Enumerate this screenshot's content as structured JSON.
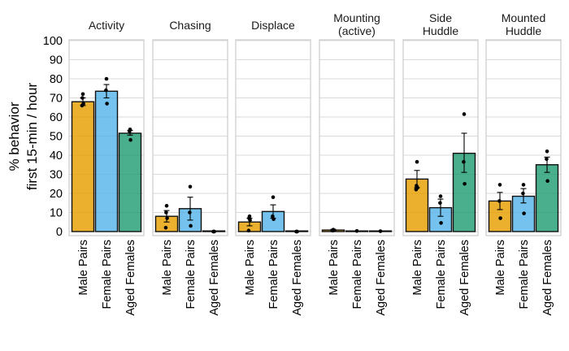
{
  "chart_data": {
    "type": "bar",
    "ylabel": [
      "% behavior",
      "first 15-min / hour"
    ],
    "ylim": [
      0,
      100
    ],
    "yticks": [
      0,
      10,
      20,
      30,
      40,
      50,
      60,
      70,
      80,
      90,
      100
    ],
    "categories": [
      "Male Pairs",
      "Female Pairs",
      "Aged Females"
    ],
    "colors": {
      "Male Pairs": "#E69F00",
      "Female Pairs": "#56B4E9",
      "Aged Females": "#229E73"
    },
    "grid": true,
    "panels": [
      {
        "title": [
          "Activity"
        ],
        "bars": [
          {
            "category": "Male Pairs",
            "mean": 68,
            "err": [
              66,
              70
            ],
            "points": [
              72,
              70,
              67,
              66
            ]
          },
          {
            "category": "Female Pairs",
            "mean": 73.5,
            "err": [
              70,
              77
            ],
            "points": [
              80,
              74,
              67
            ]
          },
          {
            "category": "Aged Females",
            "mean": 51.5,
            "err": [
              50.5,
              53
            ],
            "points": [
              53.5,
              52.5,
              48
            ]
          }
        ]
      },
      {
        "title": [
          "Chasing"
        ],
        "bars": [
          {
            "category": "Male Pairs",
            "mean": 8,
            "err": [
              5,
              11
            ],
            "points": [
              13.5,
              10,
              7,
              2
            ]
          },
          {
            "category": "Female Pairs",
            "mean": 12,
            "err": [
              6,
              18
            ],
            "points": [
              23.5,
              10,
              3
            ]
          },
          {
            "category": "Aged Females",
            "mean": 0,
            "err": [
              0,
              0
            ],
            "points": [
              0,
              0,
              0
            ]
          }
        ]
      },
      {
        "title": [
          "Displace"
        ],
        "bars": [
          {
            "category": "Male Pairs",
            "mean": 5,
            "err": [
              3,
              7
            ],
            "points": [
              8,
              7,
              6,
              0.5
            ]
          },
          {
            "category": "Female Pairs",
            "mean": 10.5,
            "err": [
              7,
              14
            ],
            "points": [
              18,
              8,
              6.5
            ]
          },
          {
            "category": "Aged Females",
            "mean": 0,
            "err": [
              0,
              0
            ],
            "points": [
              0,
              0,
              0
            ]
          }
        ]
      },
      {
        "title": [
          "Mounting",
          "(active)"
        ],
        "bars": [
          {
            "category": "Male Pairs",
            "mean": 0.8,
            "err": [
              0.4,
              1.2
            ],
            "points": [
              1,
              0.5
            ]
          },
          {
            "category": "Female Pairs",
            "mean": 0.3,
            "err": [
              0.3,
              0.3
            ],
            "points": [
              0.3
            ]
          },
          {
            "category": "Aged Females",
            "mean": 0.2,
            "err": [
              0.2,
              0.2
            ],
            "points": [
              0.2
            ]
          }
        ]
      },
      {
        "title": [
          "Side",
          "Huddle"
        ],
        "bars": [
          {
            "category": "Male Pairs",
            "mean": 27.5,
            "err": [
              23,
              32
            ],
            "points": [
              36.5,
              24,
              23,
              22
            ]
          },
          {
            "category": "Female Pairs",
            "mean": 12.5,
            "err": [
              8,
              17
            ],
            "points": [
              18.5,
              15,
              4.5
            ]
          },
          {
            "category": "Aged Females",
            "mean": 41,
            "err": [
              31,
              51.5
            ],
            "points": [
              61.5,
              36.5,
              25
            ]
          }
        ]
      },
      {
        "title": [
          "Mounted",
          "Huddle"
        ],
        "bars": [
          {
            "category": "Male Pairs",
            "mean": 16,
            "err": [
              11.5,
              20.5
            ],
            "points": [
              24.5,
              16,
              7
            ]
          },
          {
            "category": "Female Pairs",
            "mean": 18.5,
            "err": [
              15,
              22.5
            ],
            "points": [
              24.5,
              20,
              9.5
            ]
          },
          {
            "category": "Aged Females",
            "mean": 35,
            "err": [
              31,
              39
            ],
            "points": [
              42,
              38,
              26.5
            ]
          }
        ]
      }
    ]
  }
}
